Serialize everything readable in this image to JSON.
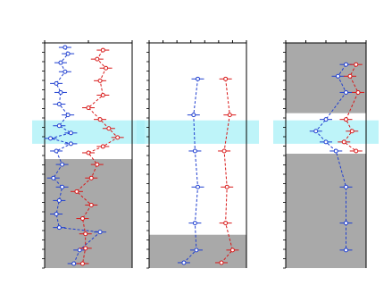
{
  "chart_data": [
    {
      "type": "line",
      "panel": "left",
      "title_lines": [
        "",
        ""
      ],
      "xlabel": "",
      "ylabel": "",
      "x_ticks": [
        "",
        "",
        ""
      ],
      "xlim": [
        0,
        3
      ],
      "ylim": [
        0,
        250
      ],
      "highlight_band": [
        86,
        112
      ],
      "shaded_zones": [
        {
          "label": "",
          "y_range": [
            129,
            250
          ]
        }
      ],
      "series": [
        {
          "color": "#1f3fd0",
          "points": [
            [
              0.7,
              5
            ],
            [
              0.8,
              12
            ],
            [
              0.55,
              22
            ],
            [
              0.7,
              32
            ],
            [
              0.4,
              45
            ],
            [
              0.55,
              55
            ],
            [
              0.5,
              68
            ],
            [
              0.8,
              80
            ],
            [
              0.5,
              92
            ],
            [
              0.9,
              100
            ],
            [
              0.2,
              106
            ],
            [
              0.9,
              112
            ],
            [
              0.4,
              120
            ],
            [
              0.6,
              135
            ],
            [
              0.3,
              150
            ],
            [
              0.6,
              160
            ],
            [
              0.5,
              175
            ],
            [
              0.4,
              190
            ],
            [
              0.5,
              205
            ],
            [
              1.9,
              210
            ],
            [
              1.2,
              230
            ],
            [
              1.0,
              245
            ]
          ]
        },
        {
          "color": "#d81818",
          "points": [
            [
              2.0,
              8
            ],
            [
              1.8,
              18
            ],
            [
              2.1,
              28
            ],
            [
              1.9,
              42
            ],
            [
              2.0,
              58
            ],
            [
              1.5,
              72
            ],
            [
              1.9,
              85
            ],
            [
              2.2,
              95
            ],
            [
              2.5,
              105
            ],
            [
              2.0,
              115
            ],
            [
              1.5,
              122
            ],
            [
              1.8,
              135
            ],
            [
              1.6,
              150
            ],
            [
              1.1,
              165
            ],
            [
              1.6,
              180
            ],
            [
              1.3,
              195
            ],
            [
              1.4,
              212
            ],
            [
              1.4,
              228
            ],
            [
              1.3,
              245
            ]
          ]
        }
      ]
    },
    {
      "type": "line",
      "panel": "middle",
      "title_lines": [
        "",
        ""
      ],
      "xlabel": "",
      "ylabel": "",
      "x_ticks": [
        "",
        "",
        "",
        "",
        "",
        "",
        "",
        ""
      ],
      "xlim": [
        0,
        7
      ],
      "ylim": [
        0,
        250
      ],
      "highlight_band": [
        86,
        112
      ],
      "shaded_zones": [
        {
          "label": "",
          "y_range": [
            213,
            250
          ]
        }
      ],
      "series": [
        {
          "color": "#1f3fd0",
          "points": [
            [
              3.5,
              40
            ],
            [
              3.2,
              80
            ],
            [
              3.3,
              120
            ],
            [
              3.5,
              160
            ],
            [
              3.3,
              200
            ],
            [
              3.4,
              230
            ],
            [
              2.5,
              244
            ]
          ]
        },
        {
          "color": "#d81818",
          "points": [
            [
              5.5,
              40
            ],
            [
              5.8,
              80
            ],
            [
              5.4,
              120
            ],
            [
              5.6,
              160
            ],
            [
              5.5,
              200
            ],
            [
              6.0,
              230
            ],
            [
              5.2,
              244
            ]
          ]
        }
      ]
    },
    {
      "type": "line",
      "panel": "right",
      "title_lines": [
        "",
        ""
      ],
      "xlabel": "",
      "ylabel": "",
      "x_ticks": [
        "",
        "",
        "",
        "",
        ""
      ],
      "xlim": [
        0,
        4
      ],
      "ylim": [
        0,
        250
      ],
      "highlight_band": [
        86,
        112
      ],
      "shaded_zones": [
        {
          "label": "",
          "y_range": [
            0,
            78
          ]
        },
        {
          "label": "",
          "y_range": [
            123,
            250
          ]
        }
      ],
      "series": [
        {
          "color": "#1f3fd0",
          "points": [
            [
              3.0,
              24
            ],
            [
              2.6,
              37
            ],
            [
              3.0,
              55
            ],
            [
              2.0,
              85
            ],
            [
              1.5,
              98
            ],
            [
              2.0,
              110
            ],
            [
              2.5,
              120
            ],
            [
              3.0,
              160
            ],
            [
              3.0,
              200
            ],
            [
              3.0,
              230
            ]
          ]
        },
        {
          "color": "#d81818",
          "points": [
            [
              3.5,
              24
            ],
            [
              3.2,
              37
            ],
            [
              3.6,
              55
            ],
            [
              3.0,
              85
            ],
            [
              3.3,
              98
            ],
            [
              2.9,
              110
            ],
            [
              3.5,
              120
            ]
          ]
        }
      ]
    }
  ]
}
